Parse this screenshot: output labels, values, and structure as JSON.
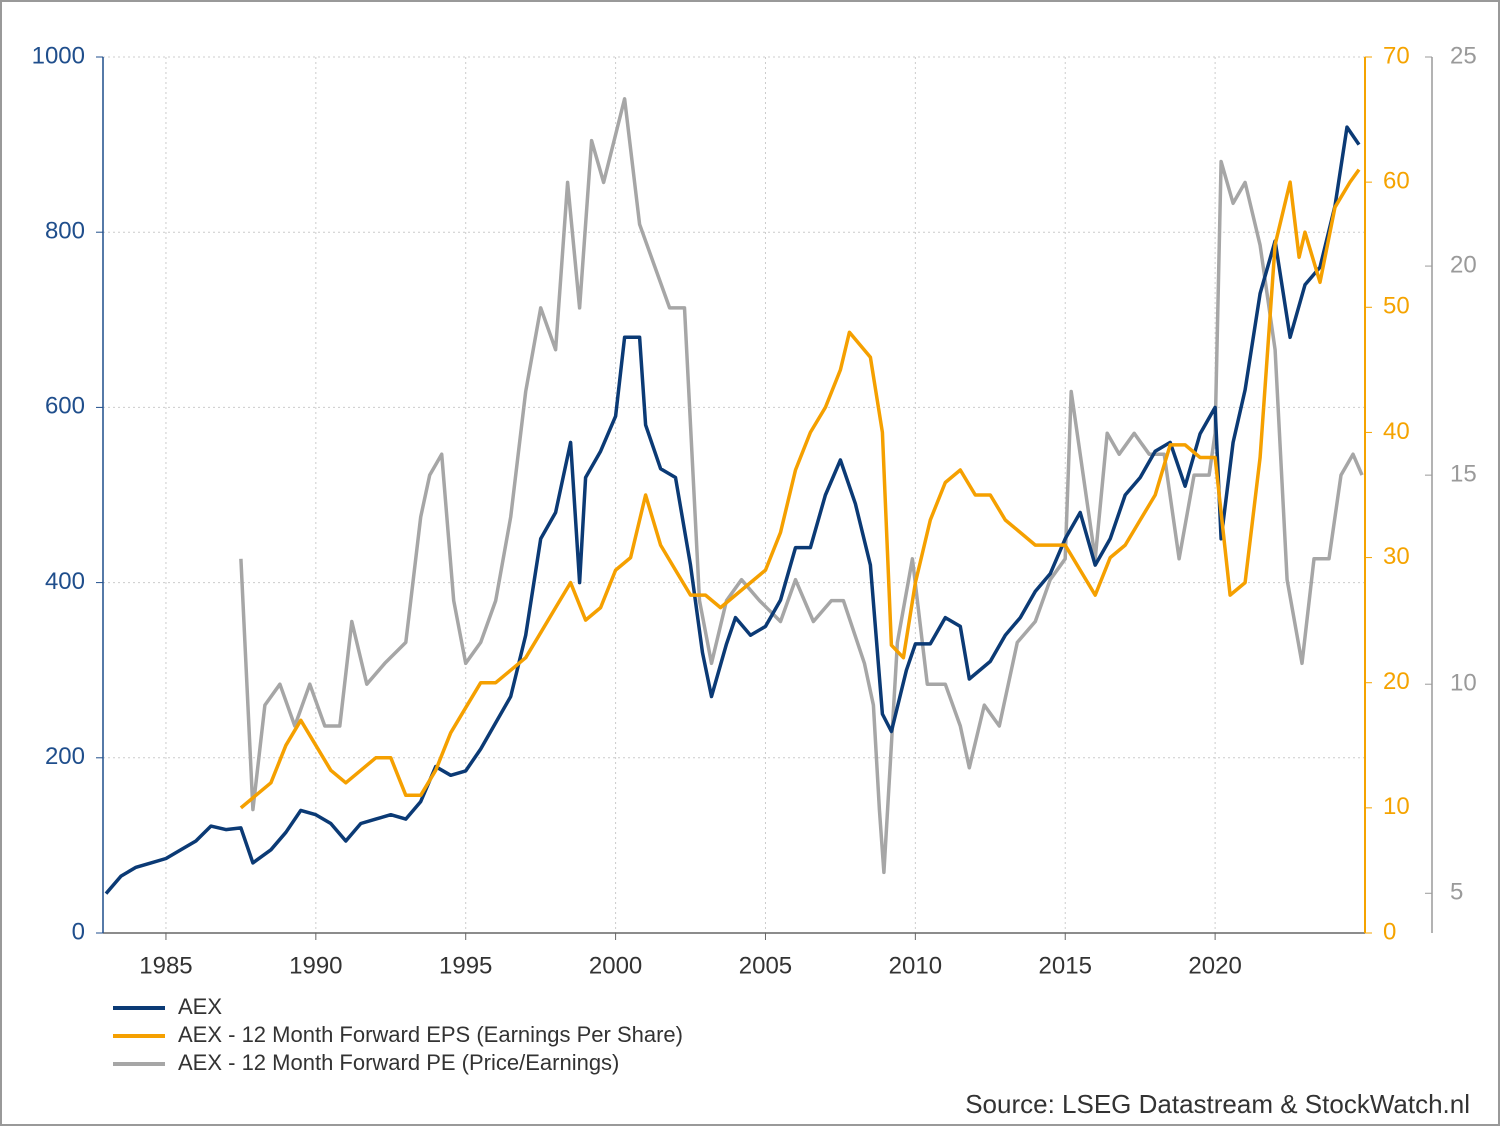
{
  "chart_data": {
    "type": "line",
    "source": "Source: LSEG Datastream & StockWatch.nl",
    "xlim": [
      1982.9,
      2025.0
    ],
    "xticks": [
      1985,
      1990,
      1995,
      2000,
      2005,
      2010,
      2015,
      2020
    ],
    "ylim": [
      0,
      1000
    ],
    "yticks": [
      0,
      200,
      400,
      600,
      800,
      1000
    ],
    "ycolor": "#1f4e8c",
    "y2lim": [
      0,
      70
    ],
    "y2ticks": [
      0,
      10,
      20,
      30,
      40,
      50,
      60,
      70
    ],
    "y2color": "#f5a300",
    "y3lim": [
      4.05,
      25
    ],
    "y3ticks": [
      5,
      10,
      15,
      20,
      25
    ],
    "y3color": "#9a9a9a",
    "grid": true,
    "legend": "bottom-left",
    "series": [
      {
        "name": "AEX",
        "color": "#0b3a75",
        "axis": "y",
        "x": [
          1983.0,
          1983.5,
          1984.0,
          1984.5,
          1985.0,
          1985.5,
          1986.0,
          1986.5,
          1987.0,
          1987.5,
          1987.9,
          1988.5,
          1989.0,
          1989.5,
          1990.0,
          1990.5,
          1991.0,
          1991.5,
          1992.0,
          1992.5,
          1993.0,
          1993.5,
          1994.0,
          1994.5,
          1995.0,
          1995.5,
          1996.0,
          1996.5,
          1997.0,
          1997.5,
          1998.0,
          1998.5,
          1998.8,
          1999.0,
          1999.5,
          2000.0,
          2000.3,
          2000.8,
          2001.0,
          2001.5,
          2002.0,
          2002.5,
          2002.9,
          2003.2,
          2003.7,
          2004.0,
          2004.5,
          2005.0,
          2005.5,
          2006.0,
          2006.5,
          2007.0,
          2007.5,
          2008.0,
          2008.5,
          2008.9,
          2009.2,
          2009.7,
          2010.0,
          2010.5,
          2011.0,
          2011.5,
          2011.8,
          2012.5,
          2013.0,
          2013.5,
          2014.0,
          2014.5,
          2015.0,
          2015.5,
          2016.0,
          2016.5,
          2017.0,
          2017.5,
          2018.0,
          2018.5,
          2019.0,
          2019.5,
          2020.0,
          2020.2,
          2020.6,
          2021.0,
          2021.5,
          2022.0,
          2022.5,
          2023.0,
          2023.5,
          2024.0,
          2024.4,
          2024.8
        ],
        "values": [
          45,
          65,
          75,
          80,
          85,
          95,
          105,
          122,
          118,
          120,
          80,
          95,
          115,
          140,
          135,
          125,
          105,
          125,
          130,
          135,
          130,
          150,
          190,
          180,
          185,
          210,
          240,
          270,
          340,
          450,
          480,
          560,
          400,
          520,
          550,
          590,
          680,
          680,
          580,
          530,
          520,
          420,
          320,
          270,
          330,
          360,
          340,
          350,
          380,
          440,
          440,
          500,
          540,
          490,
          420,
          250,
          230,
          300,
          330,
          330,
          360,
          350,
          290,
          310,
          340,
          360,
          390,
          410,
          450,
          480,
          420,
          450,
          500,
          520,
          550,
          560,
          510,
          570,
          600,
          450,
          560,
          620,
          730,
          790,
          680,
          740,
          760,
          830,
          920,
          900
        ]
      },
      {
        "name": "AEX - 12 Month Forward EPS (Earnings Per Share)",
        "color": "#f5a000",
        "axis": "y2",
        "x": [
          1987.5,
          1988.0,
          1988.5,
          1989.0,
          1989.5,
          1990.0,
          1990.5,
          1991.0,
          1991.5,
          1992.0,
          1992.5,
          1993.0,
          1993.5,
          1994.0,
          1994.5,
          1995.0,
          1995.5,
          1996.0,
          1996.5,
          1997.0,
          1997.5,
          1998.0,
          1998.5,
          1999.0,
          1999.5,
          2000.0,
          2000.5,
          2001.0,
          2001.5,
          2002.0,
          2002.5,
          2003.0,
          2003.5,
          2004.0,
          2004.5,
          2005.0,
          2005.5,
          2006.0,
          2006.5,
          2007.0,
          2007.5,
          2007.8,
          2008.5,
          2008.9,
          2009.2,
          2009.6,
          2010.0,
          2010.5,
          2011.0,
          2011.5,
          2012.0,
          2012.5,
          2013.0,
          2013.5,
          2014.0,
          2014.5,
          2015.0,
          2015.5,
          2016.0,
          2016.5,
          2017.0,
          2017.5,
          2018.0,
          2018.5,
          2019.0,
          2019.5,
          2020.0,
          2020.5,
          2021.0,
          2021.5,
          2022.0,
          2022.5,
          2022.8,
          2023.0,
          2023.5,
          2024.0,
          2024.5,
          2024.8
        ],
        "values": [
          10,
          11,
          12,
          15,
          17,
          15,
          13,
          12,
          13,
          14,
          14,
          11,
          11,
          13,
          16,
          18,
          20,
          20,
          21,
          22,
          24,
          26,
          28,
          25,
          26,
          29,
          30,
          35,
          31,
          29,
          27,
          27,
          26,
          27,
          28,
          29,
          32,
          37,
          40,
          42,
          45,
          48,
          46,
          40,
          23,
          22,
          28,
          33,
          36,
          37,
          35,
          35,
          33,
          32,
          31,
          31,
          31,
          29,
          27,
          30,
          31,
          33,
          35,
          39,
          39,
          38,
          38,
          27,
          28,
          38,
          55,
          60,
          54,
          56,
          52,
          58,
          60,
          61
        ]
      },
      {
        "name": "AEX - 12 Month Forward PE (Price/Earnings)",
        "color": "#a6a6a6",
        "axis": "y3",
        "x": [
          1987.5,
          1987.9,
          1988.3,
          1988.8,
          1989.3,
          1989.8,
          1990.3,
          1990.8,
          1991.2,
          1991.7,
          1992.3,
          1993.0,
          1993.5,
          1993.8,
          1994.2,
          1994.6,
          1995.0,
          1995.5,
          1996.0,
          1996.5,
          1997.0,
          1997.5,
          1998.0,
          1998.4,
          1998.8,
          1999.2,
          1999.6,
          2000.3,
          2000.8,
          2001.3,
          2001.8,
          2002.3,
          2002.8,
          2003.2,
          2003.7,
          2004.2,
          2004.8,
          2005.5,
          2006.0,
          2006.6,
          2007.2,
          2007.6,
          2008.3,
          2008.6,
          2008.8,
          2008.95,
          2009.4,
          2009.9,
          2010.4,
          2011.0,
          2011.5,
          2011.8,
          2012.3,
          2012.8,
          2013.4,
          2014.0,
          2014.5,
          2015.0,
          2015.2,
          2015.6,
          2016.0,
          2016.4,
          2016.8,
          2017.3,
          2017.8,
          2018.3,
          2018.8,
          2019.3,
          2019.8,
          2020.0,
          2020.2,
          2020.6,
          2021.0,
          2021.5,
          2022.0,
          2022.4,
          2022.9,
          2023.3,
          2023.8,
          2024.2,
          2024.6,
          2024.9
        ],
        "values": [
          13,
          7,
          9.5,
          10,
          9,
          10,
          9,
          9,
          11.5,
          10,
          10.5,
          11,
          14,
          15,
          15.5,
          12,
          10.5,
          11,
          12,
          14,
          17,
          19,
          18,
          22,
          19,
          23,
          22,
          24,
          21,
          20,
          19,
          19,
          12,
          10.5,
          12,
          12.5,
          12,
          11.5,
          12.5,
          11.5,
          12,
          12,
          10.5,
          9.5,
          7,
          5.5,
          11,
          13,
          10,
          10,
          9,
          8,
          9.5,
          9,
          11,
          11.5,
          12.5,
          13,
          17,
          15,
          13,
          16,
          15.5,
          16,
          15.5,
          15.5,
          13,
          15,
          15,
          16,
          22.5,
          21.5,
          22,
          20.5,
          18,
          12.5,
          10.5,
          13,
          13,
          15,
          15.5,
          15
        ]
      }
    ]
  }
}
